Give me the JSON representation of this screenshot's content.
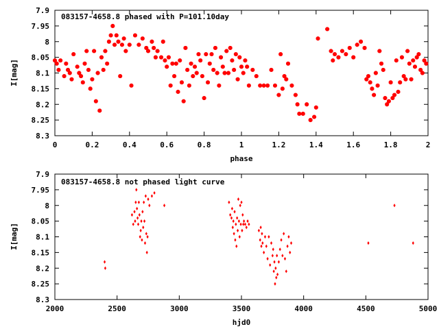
{
  "colors": {
    "point": "#ff0000",
    "frame": "#000000",
    "background": "#ffffff"
  },
  "chart_data": [
    {
      "type": "scatter",
      "title": "083157-4658.8 phased with P=101.10day",
      "xlabel": "phase",
      "ylabel": "I[mag]",
      "xlim": [
        0,
        2
      ],
      "ylim": [
        7.9,
        8.3
      ],
      "y_inverted": true,
      "x_ticks": [
        "0",
        "0.2",
        "0.4",
        "0.6",
        "0.8",
        "1",
        "1.2",
        "1.4",
        "1.6",
        "1.8",
        "2"
      ],
      "y_ticks": [
        "7.9",
        "7.95",
        "8",
        "8.05",
        "8.1",
        "8.15",
        "8.2",
        "8.25",
        "8.3"
      ],
      "grid": false,
      "series": [
        {
          "x": [
            0.0,
            0.01,
            0.02,
            0.03,
            0.05,
            0.06,
            0.07,
            0.08,
            0.09,
            0.1,
            0.12,
            0.13,
            0.14,
            0.15,
            0.16,
            0.17,
            0.18,
            0.19,
            0.2,
            0.21,
            0.22,
            0.23,
            0.24,
            0.25,
            0.26,
            0.27,
            0.28,
            0.29,
            0.3,
            0.31,
            0.32,
            0.33,
            0.34,
            0.35,
            0.36,
            0.37,
            0.38,
            0.4,
            0.41,
            0.43,
            0.45,
            0.47,
            0.49,
            0.5,
            0.52,
            0.53,
            0.54,
            0.55,
            0.57,
            0.58,
            0.59,
            0.6,
            0.61,
            0.62,
            0.63,
            0.64,
            0.65,
            0.66,
            0.67,
            0.68,
            0.69,
            0.7,
            0.71,
            0.72,
            0.73,
            0.74,
            0.75,
            0.76,
            0.77,
            0.78,
            0.79,
            0.8,
            0.81,
            0.82,
            0.83,
            0.84,
            0.85,
            0.86,
            0.87,
            0.88,
            0.89,
            0.9,
            0.91,
            0.92,
            0.93,
            0.94,
            0.95,
            0.96,
            0.97,
            0.98,
            0.99,
            1.0,
            1.01,
            1.02,
            1.03,
            1.04,
            1.06,
            1.08,
            1.1,
            1.12,
            1.14,
            1.16,
            1.18,
            1.2,
            1.21,
            1.22,
            1.23,
            1.24,
            1.25,
            1.27,
            1.29,
            1.3,
            1.31,
            1.33,
            1.35,
            1.37,
            1.39,
            1.4,
            1.41,
            1.46,
            1.48,
            1.49,
            1.5,
            1.52,
            1.54,
            1.56,
            1.58,
            1.6,
            1.62,
            1.64,
            1.66,
            1.67,
            1.68,
            1.69,
            1.7,
            1.71,
            1.72,
            1.73,
            1.74,
            1.75,
            1.76,
            1.77,
            1.78,
            1.79,
            1.8,
            1.81,
            1.82,
            1.83,
            1.84,
            1.85,
            1.86,
            1.87,
            1.88,
            1.89,
            1.9,
            1.91,
            1.92,
            1.93,
            1.94,
            1.95,
            1.96,
            1.97,
            1.98,
            1.99
          ],
          "y": [
            8.06,
            8.07,
            8.09,
            8.06,
            8.11,
            8.07,
            8.09,
            8.1,
            8.12,
            8.04,
            8.08,
            8.1,
            8.11,
            8.13,
            8.07,
            8.03,
            8.09,
            8.15,
            8.12,
            8.03,
            8.19,
            8.1,
            8.22,
            8.05,
            8.09,
            8.03,
            8.07,
            8.0,
            7.98,
            7.95,
            8.01,
            7.98,
            8.0,
            8.11,
            8.01,
            7.99,
            8.03,
            8.01,
            8.14,
            7.98,
            8.01,
            7.99,
            8.02,
            8.03,
            8.0,
            8.02,
            8.05,
            8.03,
            8.05,
            8.0,
            8.06,
            8.08,
            8.05,
            8.14,
            8.07,
            8.11,
            8.07,
            8.16,
            8.06,
            8.13,
            8.19,
            8.02,
            8.09,
            8.14,
            8.07,
            8.11,
            8.08,
            8.1,
            8.04,
            8.06,
            8.11,
            8.18,
            8.04,
            8.13,
            8.07,
            8.04,
            8.09,
            8.02,
            8.1,
            8.14,
            8.05,
            8.08,
            8.1,
            8.03,
            8.1,
            8.02,
            8.06,
            8.09,
            8.04,
            8.12,
            8.05,
            8.08,
            8.1,
            8.06,
            8.08,
            8.14,
            8.09,
            8.11,
            8.14,
            8.14,
            8.14,
            8.09,
            8.14,
            8.17,
            8.04,
            8.15,
            8.11,
            8.12,
            8.07,
            8.14,
            8.17,
            8.2,
            8.23,
            8.23,
            8.2,
            8.25,
            8.24,
            8.21,
            7.99,
            7.96,
            8.03,
            8.06,
            8.04,
            8.05,
            8.03,
            8.04,
            8.02,
            8.05,
            8.01,
            8.0,
            8.02,
            8.12,
            8.11,
            8.13,
            8.15,
            8.17,
            8.1,
            8.14,
            8.03,
            8.07,
            8.09,
            8.18,
            8.2,
            8.19,
            8.13,
            8.18,
            8.17,
            8.06,
            8.16,
            8.13,
            8.05,
            8.11,
            8.12,
            8.03,
            8.07,
            8.12,
            8.06,
            8.08,
            8.05,
            8.04,
            8.09,
            8.1,
            8.06,
            8.07
          ]
        }
      ]
    },
    {
      "type": "scatter",
      "title": "083157-4658.8 not phased light curve",
      "xlabel": "hjd0",
      "ylabel": "I[mag]",
      "xlim": [
        2000,
        5000
      ],
      "ylim": [
        7.9,
        8.3
      ],
      "y_inverted": true,
      "x_ticks": [
        "2000",
        "2500",
        "3000",
        "3500",
        "4000",
        "4500",
        "5000"
      ],
      "y_ticks": [
        "7.9",
        "7.95",
        "8",
        "8.05",
        "8.1",
        "8.15",
        "8.2",
        "8.25",
        "8.3"
      ],
      "grid": false,
      "series": [
        {
          "x": [
            2400,
            2405,
            2620,
            2630,
            2640,
            2645,
            2650,
            2655,
            2660,
            2665,
            2670,
            2675,
            2680,
            2685,
            2690,
            2695,
            2700,
            2705,
            2710,
            2715,
            2720,
            2725,
            2730,
            2735,
            2740,
            2745,
            2750,
            2760,
            2780,
            2800,
            2880,
            3400,
            3410,
            3420,
            3425,
            3430,
            3435,
            3440,
            3445,
            3450,
            3455,
            3460,
            3465,
            3470,
            3475,
            3480,
            3485,
            3490,
            3495,
            3500,
            3505,
            3510,
            3515,
            3520,
            3530,
            3540,
            3550,
            3560,
            3640,
            3650,
            3655,
            3660,
            3665,
            3670,
            3680,
            3690,
            3700,
            3710,
            3720,
            3730,
            3740,
            3750,
            3755,
            3760,
            3765,
            3770,
            3775,
            3780,
            3785,
            3790,
            3800,
            3810,
            3820,
            3830,
            3840,
            3850,
            3860,
            3870,
            3880,
            3890,
            3900,
            4520,
            4730,
            4880
          ],
          "y": [
            8.18,
            8.2,
            8.03,
            8.06,
            8.02,
            8.05,
            7.99,
            7.95,
            8.01,
            8.04,
            8.06,
            7.99,
            8.03,
            8.1,
            8.08,
            8.05,
            8.11,
            8.02,
            8.07,
            7.99,
            8.05,
            8.12,
            7.97,
            8.09,
            8.15,
            8.1,
            7.98,
            8.0,
            7.97,
            7.96,
            8.0,
            7.99,
            8.03,
            8.04,
            8.01,
            8.07,
            8.05,
            8.09,
            8.02,
            8.11,
            8.06,
            8.13,
            8.04,
            8.08,
            7.98,
            8.05,
            8.1,
            8.0,
            8.06,
            7.99,
            8.08,
            8.03,
            8.06,
            8.05,
            8.06,
            8.07,
            8.05,
            8.06,
            8.08,
            8.11,
            8.07,
            8.13,
            8.09,
            8.12,
            8.15,
            8.1,
            8.13,
            8.17,
            8.1,
            8.19,
            8.12,
            8.16,
            8.14,
            8.21,
            8.18,
            8.25,
            8.2,
            8.23,
            8.16,
            8.22,
            8.18,
            8.14,
            8.11,
            8.16,
            8.09,
            8.17,
            8.21,
            8.13,
            8.1,
            8.15,
            8.12,
            8.12,
            8.0,
            8.12
          ]
        }
      ]
    }
  ]
}
